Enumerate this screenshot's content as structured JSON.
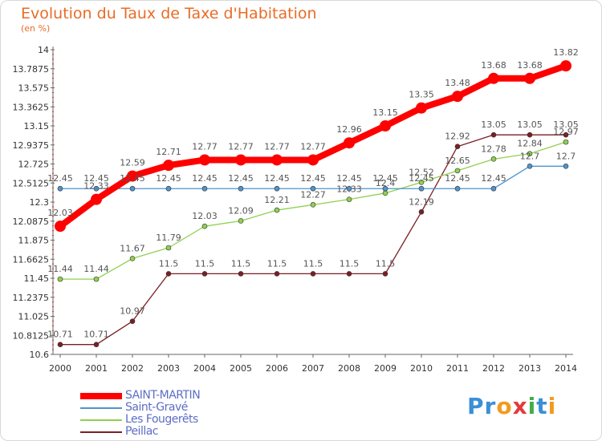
{
  "header": {
    "title": "Evolution du Taux de Taxe d'Habitation",
    "subtitle": "(en %)"
  },
  "logo": {
    "text": "Proxiti",
    "letters": [
      {
        "ch": "P",
        "color": "#3a8fd6"
      },
      {
        "ch": "r",
        "color": "#3a8fd6"
      },
      {
        "ch": "o",
        "color": "#f29a1f"
      },
      {
        "ch": "x",
        "color": "#e23b3b"
      },
      {
        "ch": "i",
        "color": "#3fae49"
      },
      {
        "ch": "t",
        "color": "#3a8fd6"
      },
      {
        "ch": "i",
        "color": "#f29a1f"
      }
    ]
  },
  "chart_data": {
    "type": "line",
    "x": [
      "2000",
      "2001",
      "2002",
      "2003",
      "2004",
      "2005",
      "2006",
      "2007",
      "2008",
      "2009",
      "2010",
      "2011",
      "2012",
      "2013",
      "2014"
    ],
    "ylim": [
      10.6,
      14
    ],
    "yticks": [
      "10.6",
      "10.8125",
      "11.025",
      "11.2375",
      "11.45",
      "11.6625",
      "11.875",
      "12.0875",
      "12.3",
      "12.5125",
      "12.725",
      "12.9375",
      "13.15",
      "13.3625",
      "13.575",
      "13.7875",
      "14"
    ],
    "grid": false,
    "legend_position": "bottom-left",
    "series": [
      {
        "name": "SAINT-MARTIN",
        "color": "#ff0000",
        "width": 8,
        "marker": 7,
        "values": [
          12.03,
          12.33,
          12.59,
          12.71,
          12.77,
          12.77,
          12.77,
          12.77,
          12.96,
          13.15,
          13.35,
          13.48,
          13.68,
          13.68,
          13.82
        ],
        "labels": [
          "12.03",
          "12.33",
          "12.59",
          "12.71",
          "12.77",
          "12.77",
          "12.77",
          "12.77",
          "12.96",
          "13.15",
          "13.35",
          "13.48",
          "13.68",
          "13.68",
          "13.82"
        ]
      },
      {
        "name": "Saint-Gravé",
        "color": "#4f94cd",
        "width": 1.3,
        "marker": 3,
        "values": [
          12.45,
          12.45,
          12.45,
          12.45,
          12.45,
          12.45,
          12.45,
          12.45,
          12.45,
          12.45,
          12.45,
          12.45,
          12.45,
          12.7,
          12.7
        ],
        "labels": [
          "12.45",
          "12.45",
          "12.45",
          "12.45",
          "12.45",
          "12.45",
          "12.45",
          "12.45",
          "12.45",
          "12.45",
          "12.45",
          "12.45",
          "12.45",
          "12.7",
          "12.7"
        ]
      },
      {
        "name": "Les Fougerêts",
        "color": "#90d050",
        "width": 1.3,
        "marker": 3,
        "values": [
          11.44,
          11.44,
          11.67,
          11.79,
          12.03,
          12.09,
          12.21,
          12.27,
          12.33,
          12.4,
          12.52,
          12.65,
          12.78,
          12.84,
          12.97
        ],
        "labels": [
          "11.44",
          "11.44",
          "11.67",
          "11.79",
          "12.03",
          "12.09",
          "12.21",
          "12.27",
          "12.33",
          "12.4",
          "12.52",
          "12.65",
          "12.78",
          "12.84",
          "12.97"
        ]
      },
      {
        "name": "Peillac",
        "color": "#7a1f24",
        "width": 1.3,
        "marker": 3,
        "values": [
          10.71,
          10.71,
          10.97,
          11.5,
          11.5,
          11.5,
          11.5,
          11.5,
          11.5,
          11.5,
          12.19,
          12.92,
          13.05,
          13.05,
          13.05
        ],
        "labels": [
          "10.71",
          "10.71",
          "10.97",
          "11.5",
          "11.5",
          "11.5",
          "11.5",
          "11.5",
          "11.5",
          "11.5",
          "12.19",
          "12.92",
          "13.05",
          "13.05",
          "13.05"
        ]
      }
    ]
  }
}
